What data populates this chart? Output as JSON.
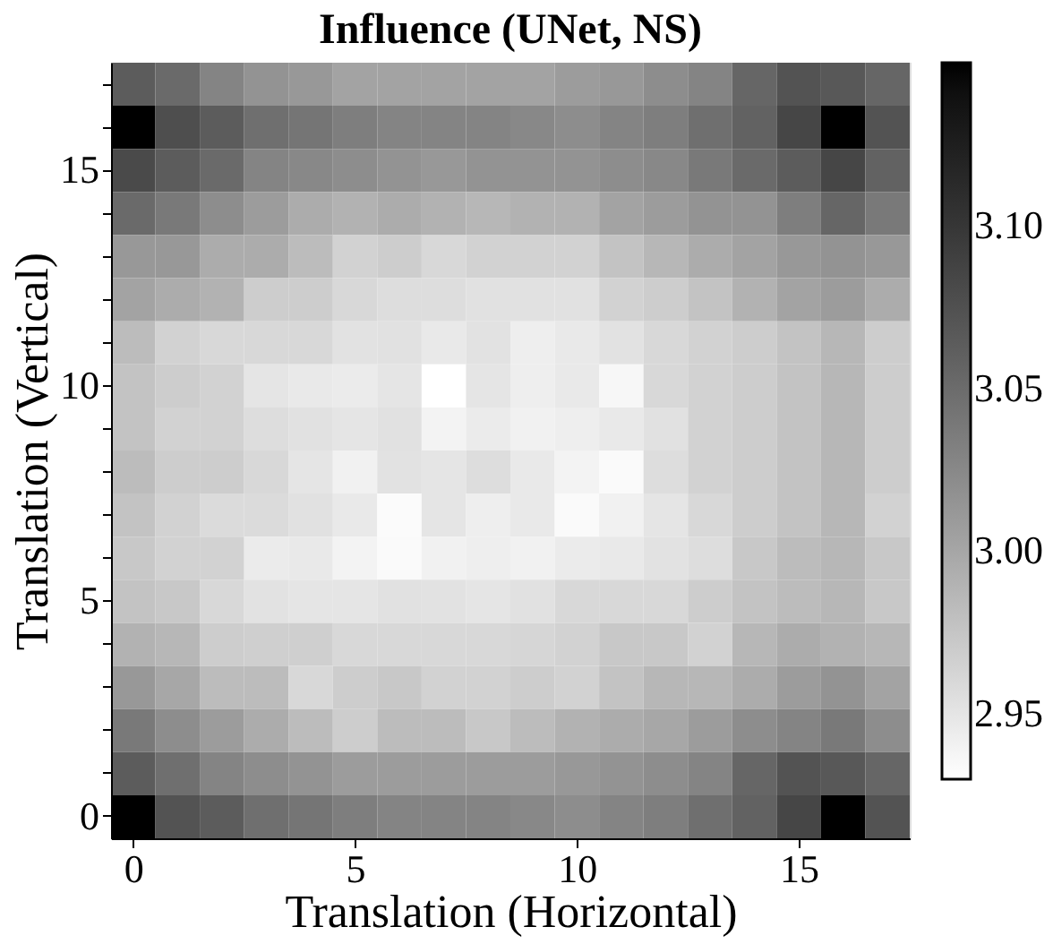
{
  "chart_data": {
    "type": "heatmap",
    "title": "Influence (UNet, NS)",
    "xlabel": "Translation (Horizontal)",
    "ylabel": "Translation (Vertical)",
    "x": [
      0,
      1,
      2,
      3,
      4,
      5,
      6,
      7,
      8,
      9,
      10,
      11,
      12,
      13,
      14,
      15,
      16,
      17
    ],
    "y_categories": [
      null,
      null,
      "15",
      null,
      null,
      null,
      null,
      "10",
      null,
      null,
      null,
      null,
      "5",
      null,
      null,
      null,
      null,
      "0"
    ],
    "xlim": [
      -0.5,
      17.5
    ],
    "xticks": [
      0,
      5,
      10,
      15
    ],
    "clim": [
      2.93,
      3.15
    ],
    "cticks": [
      2.95,
      {
        "value": 3.0,
        "label": "3.00"
      },
      3.05,
      {
        "value": 3.1,
        "label": "3.10"
      }
    ],
    "cells": [
      [
        3.064,
        3.051,
        3.029,
        3.016,
        3.012,
        3.003,
        3.003,
        3.003,
        3.003,
        3.003,
        3.008,
        3.012,
        3.021,
        3.029,
        3.055,
        3.072,
        3.068,
        3.055
      ],
      [
        3.15,
        3.077,
        3.064,
        3.047,
        3.042,
        3.034,
        3.029,
        3.029,
        3.029,
        3.025,
        3.021,
        3.029,
        3.034,
        3.047,
        3.059,
        3.085,
        3.15,
        3.072
      ],
      [
        3.081,
        3.064,
        3.051,
        3.029,
        3.025,
        3.021,
        3.016,
        3.012,
        3.016,
        3.016,
        3.016,
        3.021,
        3.025,
        3.038,
        3.051,
        3.064,
        3.085,
        3.059
      ],
      [
        3.051,
        3.038,
        3.021,
        3.008,
        2.995,
        2.99,
        2.995,
        2.99,
        2.986,
        2.99,
        2.99,
        3.003,
        3.008,
        3.016,
        3.016,
        3.034,
        3.055,
        3.038
      ],
      [
        3.012,
        3.012,
        2.995,
        2.995,
        2.982,
        2.965,
        2.969,
        2.96,
        2.965,
        2.965,
        2.965,
        2.977,
        2.986,
        2.995,
        3.003,
        3.012,
        3.016,
        3.012
      ],
      [
        3.003,
        2.995,
        2.99,
        2.969,
        2.969,
        2.96,
        2.956,
        2.956,
        2.953,
        2.953,
        2.953,
        2.965,
        2.969,
        2.977,
        2.99,
        3.003,
        3.008,
        2.995
      ],
      [
        2.982,
        2.965,
        2.96,
        2.96,
        2.96,
        2.952,
        2.953,
        2.947,
        2.952,
        2.943,
        2.947,
        2.952,
        2.96,
        2.965,
        2.969,
        2.977,
        2.986,
        2.969
      ],
      [
        2.977,
        2.969,
        2.965,
        2.95,
        2.947,
        2.945,
        2.95,
        2.93,
        2.95,
        2.943,
        2.947,
        2.936,
        2.96,
        2.965,
        2.969,
        2.977,
        2.986,
        2.969
      ],
      [
        2.977,
        2.965,
        2.965,
        2.956,
        2.953,
        2.95,
        2.953,
        2.939,
        2.945,
        2.941,
        2.943,
        2.947,
        2.953,
        2.965,
        2.969,
        2.977,
        2.986,
        2.969
      ],
      [
        2.982,
        2.969,
        2.969,
        2.96,
        2.95,
        2.941,
        2.952,
        2.95,
        2.956,
        2.947,
        2.939,
        2.934,
        2.956,
        2.965,
        2.969,
        2.977,
        2.986,
        2.969
      ],
      [
        2.977,
        2.965,
        2.958,
        2.958,
        2.953,
        2.947,
        2.933,
        2.95,
        2.943,
        2.947,
        2.934,
        2.941,
        2.95,
        2.96,
        2.969,
        2.977,
        2.986,
        2.965
      ],
      [
        2.973,
        2.965,
        2.965,
        2.945,
        2.947,
        2.939,
        2.934,
        2.941,
        2.943,
        2.941,
        2.945,
        2.947,
        2.952,
        2.956,
        2.973,
        2.982,
        2.986,
        2.973
      ],
      [
        2.977,
        2.973,
        2.96,
        2.952,
        2.95,
        2.95,
        2.953,
        2.952,
        2.95,
        2.953,
        2.96,
        2.96,
        2.96,
        2.969,
        2.977,
        2.982,
        2.986,
        2.973
      ],
      [
        2.99,
        2.986,
        2.969,
        2.967,
        2.967,
        2.96,
        2.96,
        2.96,
        2.96,
        2.962,
        2.965,
        2.973,
        2.973,
        2.965,
        2.986,
        2.995,
        2.99,
        2.986
      ],
      [
        3.012,
        2.999,
        2.982,
        2.982,
        2.96,
        2.969,
        2.973,
        2.965,
        2.965,
        2.969,
        2.965,
        2.977,
        2.986,
        2.986,
        2.995,
        3.008,
        3.016,
        3.003
      ],
      [
        3.038,
        3.021,
        3.008,
        2.995,
        2.982,
        2.969,
        2.982,
        2.982,
        2.973,
        2.982,
        2.99,
        2.995,
        2.999,
        3.008,
        3.021,
        3.029,
        3.038,
        3.021
      ],
      [
        3.064,
        3.047,
        3.029,
        3.021,
        3.016,
        3.008,
        3.008,
        3.008,
        3.008,
        3.008,
        3.012,
        3.016,
        3.021,
        3.029,
        3.055,
        3.072,
        3.068,
        3.055
      ],
      [
        3.15,
        3.072,
        3.064,
        3.047,
        3.042,
        3.034,
        3.029,
        3.029,
        3.029,
        3.025,
        3.021,
        3.029,
        3.034,
        3.047,
        3.059,
        3.085,
        3.15,
        3.072
      ]
    ]
  }
}
